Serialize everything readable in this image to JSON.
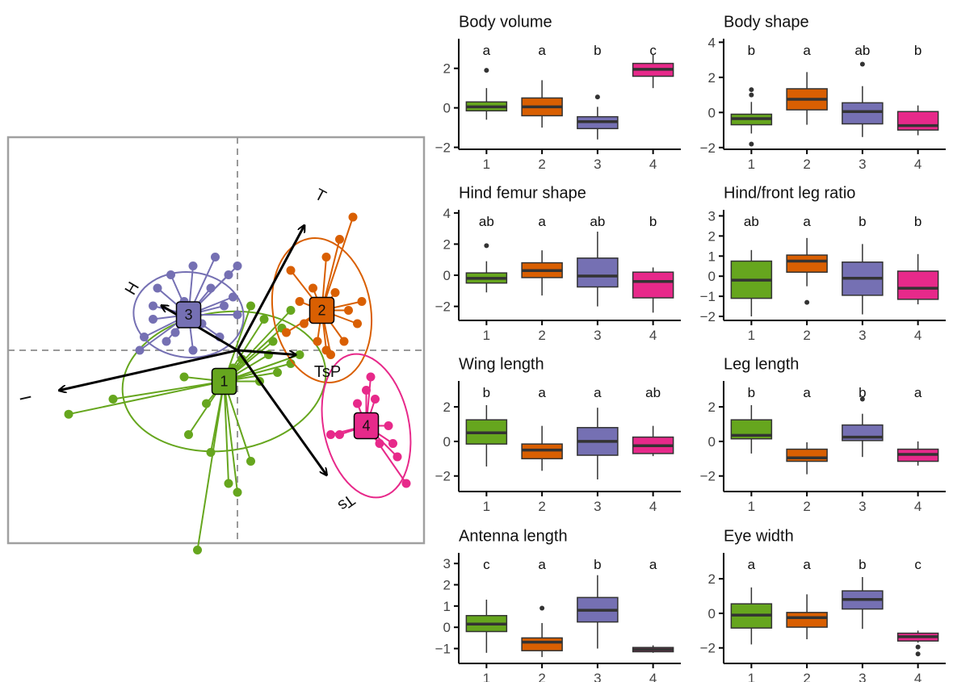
{
  "colors": {
    "g1": "#66a61e",
    "g2": "#d95f02",
    "g3": "#7570b3",
    "g4": "#e7298a",
    "ink": "#000000",
    "frame": "#a0a0a0",
    "dash": "#9a9a9a",
    "median": "#333333"
  },
  "chart_data": {
    "biplot": {
      "type": "scatter",
      "groups": [
        {
          "name": "1",
          "color": "#66a61e",
          "centroid": [
            -0.15,
            -0.35
          ],
          "ellipse": {
            "rx": 1.15,
            "ry": 0.78,
            "angle": -8
          },
          "points": [
            [
              -1.4,
              -0.55
            ],
            [
              -1.9,
              -0.72
            ],
            [
              -0.6,
              -0.3
            ],
            [
              -0.35,
              -0.6
            ],
            [
              -0.55,
              -0.95
            ],
            [
              -0.1,
              -1.5
            ],
            [
              -0.3,
              -1.15
            ],
            [
              0.15,
              -1.25
            ],
            [
              0.05,
              -0.1
            ],
            [
              0.35,
              -0.05
            ],
            [
              0.5,
              0.25
            ],
            [
              0.3,
              0.35
            ],
            [
              0.6,
              0.45
            ],
            [
              0.25,
              -0.35
            ],
            [
              0.45,
              -0.25
            ],
            [
              0.0,
              -1.6
            ],
            [
              -0.45,
              -2.25
            ],
            [
              0.6,
              -0.15
            ],
            [
              0.7,
              -0.05
            ],
            [
              0.15,
              0.5
            ],
            [
              -0.05,
              -0.2
            ],
            [
              0.4,
              0.1
            ]
          ]
        },
        {
          "name": "2",
          "color": "#d95f02",
          "centroid": [
            0.95,
            0.45
          ],
          "ellipse": {
            "rx": 0.55,
            "ry": 0.82,
            "angle": -10
          },
          "points": [
            [
              1.3,
              1.5
            ],
            [
              1.15,
              1.25
            ],
            [
              1.0,
              1.05
            ],
            [
              0.6,
              0.9
            ],
            [
              0.7,
              0.55
            ],
            [
              0.75,
              0.3
            ],
            [
              0.9,
              0.1
            ],
            [
              1.0,
              0.0
            ],
            [
              1.05,
              -0.05
            ],
            [
              1.2,
              0.1
            ],
            [
              1.35,
              0.3
            ],
            [
              0.85,
              0.7
            ],
            [
              1.1,
              0.65
            ],
            [
              0.55,
              0.2
            ],
            [
              1.4,
              0.55
            ],
            [
              1.25,
              0.45
            ]
          ]
        },
        {
          "name": "3",
          "color": "#7570b3",
          "centroid": [
            -0.55,
            0.4
          ],
          "ellipse": {
            "rx": 0.62,
            "ry": 0.48,
            "angle": 5
          },
          "points": [
            [
              -1.05,
              0.15
            ],
            [
              -1.1,
              0.0
            ],
            [
              -0.8,
              0.1
            ],
            [
              -0.95,
              0.5
            ],
            [
              -0.9,
              0.7
            ],
            [
              -0.75,
              0.85
            ],
            [
              -0.5,
              0.95
            ],
            [
              -0.3,
              0.7
            ],
            [
              0.0,
              0.95
            ],
            [
              -0.1,
              0.85
            ],
            [
              -0.05,
              0.6
            ],
            [
              0.0,
              0.4
            ],
            [
              -0.2,
              0.15
            ],
            [
              -0.5,
              0.0
            ],
            [
              -0.7,
              0.2
            ],
            [
              -0.95,
              0.35
            ],
            [
              -0.25,
              1.05
            ],
            [
              -0.6,
              0.55
            ],
            [
              -0.4,
              0.3
            ],
            [
              -0.15,
              0.5
            ]
          ]
        },
        {
          "name": "4",
          "color": "#e7298a",
          "centroid": [
            1.45,
            -0.85
          ],
          "ellipse": {
            "rx": 0.48,
            "ry": 0.82,
            "angle": -12
          },
          "points": [
            [
              1.5,
              -0.3
            ],
            [
              1.45,
              -0.45
            ],
            [
              1.35,
              -0.6
            ],
            [
              1.55,
              -0.55
            ],
            [
              1.7,
              -0.85
            ],
            [
              1.75,
              -1.05
            ],
            [
              1.6,
              -1.05
            ],
            [
              1.8,
              -1.2
            ],
            [
              1.9,
              -1.5
            ],
            [
              1.15,
              -0.95
            ],
            [
              1.05,
              -0.95
            ]
          ]
        }
      ],
      "arrows": [
        {
          "label": "T",
          "tip": [
            0.75,
            1.4
          ]
        },
        {
          "label": "H",
          "tip": [
            -0.85,
            0.5
          ]
        },
        {
          "label": "TsP",
          "tip": [
            0.65,
            -0.05
          ]
        },
        {
          "label": "I",
          "tip": [
            -2.0,
            -0.45
          ]
        },
        {
          "label": "Ts",
          "tip": [
            1.0,
            -1.4
          ]
        }
      ]
    },
    "boxplots": [
      {
        "type": "box",
        "title": "Body volume",
        "categories": [
          "1",
          "2",
          "3",
          "4"
        ],
        "yticks": [
          -2,
          0,
          2
        ],
        "ylim": [
          -2.1,
          3.5
        ],
        "letters": [
          "a",
          "a",
          "b",
          "c"
        ],
        "boxes": [
          {
            "q1": -0.15,
            "med": 0.05,
            "q3": 0.3,
            "lo": -0.6,
            "hi": 1.0,
            "out": [
              1.9
            ]
          },
          {
            "q1": -0.4,
            "med": 0.05,
            "q3": 0.5,
            "lo": -1.0,
            "hi": 1.4,
            "out": []
          },
          {
            "q1": -1.05,
            "med": -0.7,
            "q3": -0.45,
            "lo": -1.6,
            "hi": 0.05,
            "out": [
              0.55
            ]
          },
          {
            "q1": 1.6,
            "med": 1.95,
            "q3": 2.25,
            "lo": 1.0,
            "hi": 2.7,
            "out": []
          }
        ]
      },
      {
        "type": "box",
        "title": "Body shape",
        "categories": [
          "1",
          "2",
          "3",
          "4"
        ],
        "yticks": [
          -2,
          0,
          2,
          4
        ],
        "ylim": [
          -2.1,
          4.2
        ],
        "letters": [
          "b",
          "a",
          "ab",
          "b"
        ],
        "boxes": [
          {
            "q1": -0.7,
            "med": -0.35,
            "q3": -0.1,
            "lo": -1.2,
            "hi": 0.6,
            "out": [
              1.3,
              1.0,
              -1.8
            ]
          },
          {
            "q1": 0.15,
            "med": 0.75,
            "q3": 1.35,
            "lo": -0.7,
            "hi": 2.3,
            "out": []
          },
          {
            "q1": -0.65,
            "med": 0.05,
            "q3": 0.55,
            "lo": -1.4,
            "hi": 1.5,
            "out": [
              2.75
            ]
          },
          {
            "q1": -1.0,
            "med": -0.75,
            "q3": 0.05,
            "lo": -1.3,
            "hi": 0.4,
            "out": []
          }
        ]
      },
      {
        "type": "box",
        "title": "Hind femur shape",
        "categories": [
          "1",
          "2",
          "3",
          "4"
        ],
        "yticks": [
          -2,
          0,
          2,
          4
        ],
        "ylim": [
          -2.9,
          4.2
        ],
        "letters": [
          "ab",
          "a",
          "ab",
          "b"
        ],
        "boxes": [
          {
            "q1": -0.5,
            "med": -0.2,
            "q3": 0.15,
            "lo": -1.1,
            "hi": 0.9,
            "out": [
              1.9
            ]
          },
          {
            "q1": -0.15,
            "med": 0.3,
            "q3": 0.8,
            "lo": -1.3,
            "hi": 1.6,
            "out": []
          },
          {
            "q1": -0.75,
            "med": -0.05,
            "q3": 1.1,
            "lo": -2.0,
            "hi": 2.8,
            "out": []
          },
          {
            "q1": -1.45,
            "med": -0.4,
            "q3": 0.2,
            "lo": -2.4,
            "hi": 0.5,
            "out": []
          }
        ]
      },
      {
        "type": "box",
        "title": "Hind/front leg ratio",
        "categories": [
          "1",
          "2",
          "3",
          "4"
        ],
        "yticks": [
          -2,
          -1,
          0,
          1,
          2,
          3
        ],
        "ylim": [
          -2.2,
          3.3
        ],
        "letters": [
          "ab",
          "a",
          "b",
          "b"
        ],
        "boxes": [
          {
            "q1": -1.1,
            "med": -0.2,
            "q3": 0.75,
            "lo": -2.0,
            "hi": 1.3,
            "out": []
          },
          {
            "q1": 0.2,
            "med": 0.75,
            "q3": 1.05,
            "lo": -0.5,
            "hi": 1.9,
            "out": [
              -1.3
            ]
          },
          {
            "q1": -0.95,
            "med": -0.1,
            "q3": 0.7,
            "lo": -1.9,
            "hi": 1.6,
            "out": []
          },
          {
            "q1": -1.15,
            "med": -0.6,
            "q3": 0.25,
            "lo": -1.4,
            "hi": 1.1,
            "out": []
          }
        ]
      },
      {
        "type": "box",
        "title": "Wing length",
        "categories": [
          "1",
          "2",
          "3",
          "4"
        ],
        "yticks": [
          -2,
          0,
          2
        ],
        "ylim": [
          -2.9,
          3.5
        ],
        "letters": [
          "b",
          "a",
          "a",
          "ab"
        ],
        "boxes": [
          {
            "q1": -0.15,
            "med": 0.5,
            "q3": 1.25,
            "lo": -1.45,
            "hi": 2.1,
            "out": []
          },
          {
            "q1": -1.0,
            "med": -0.5,
            "q3": -0.15,
            "lo": -1.7,
            "hi": 0.9,
            "out": []
          },
          {
            "q1": -0.8,
            "med": 0.0,
            "q3": 0.8,
            "lo": -2.2,
            "hi": 1.95,
            "out": []
          },
          {
            "q1": -0.7,
            "med": -0.25,
            "q3": 0.25,
            "lo": -0.85,
            "hi": 0.9,
            "out": []
          }
        ]
      },
      {
        "type": "box",
        "title": "Leg length",
        "categories": [
          "1",
          "2",
          "3",
          "4"
        ],
        "yticks": [
          -2,
          0,
          2
        ],
        "ylim": [
          -2.9,
          3.5
        ],
        "letters": [
          "b",
          "a",
          "b",
          "a"
        ],
        "boxes": [
          {
            "q1": 0.15,
            "med": 0.35,
            "q3": 1.25,
            "lo": -0.7,
            "hi": 2.1,
            "out": []
          },
          {
            "q1": -1.15,
            "med": -0.95,
            "q3": -0.45,
            "lo": -1.9,
            "hi": -0.05,
            "out": []
          },
          {
            "q1": 0.05,
            "med": 0.25,
            "q3": 0.95,
            "lo": -0.9,
            "hi": 1.6,
            "out": [
              2.45
            ]
          },
          {
            "q1": -1.15,
            "med": -0.75,
            "q3": -0.45,
            "lo": -1.4,
            "hi": 0.0,
            "out": []
          }
        ]
      },
      {
        "type": "box",
        "title": "Antenna length",
        "categories": [
          "1",
          "2",
          "3",
          "4"
        ],
        "yticks": [
          -1,
          0,
          1,
          2,
          3
        ],
        "ylim": [
          -1.7,
          3.5
        ],
        "letters": [
          "c",
          "a",
          "b",
          "a"
        ],
        "boxes": [
          {
            "q1": -0.2,
            "med": 0.15,
            "q3": 0.55,
            "lo": -1.2,
            "hi": 1.3,
            "out": []
          },
          {
            "q1": -1.1,
            "med": -0.7,
            "q3": -0.5,
            "lo": -1.4,
            "hi": 0.2,
            "out": [
              0.9
            ]
          },
          {
            "q1": 0.25,
            "med": 0.8,
            "q3": 1.4,
            "lo": -1.0,
            "hi": 2.45,
            "out": []
          },
          {
            "q1": -1.15,
            "med": -1.05,
            "q3": -0.95,
            "lo": -1.2,
            "hi": -0.85,
            "out": []
          }
        ]
      },
      {
        "type": "box",
        "title": "Eye width",
        "categories": [
          "1",
          "2",
          "3",
          "4"
        ],
        "yticks": [
          -2,
          0,
          2
        ],
        "ylim": [
          -2.9,
          3.5
        ],
        "letters": [
          "a",
          "a",
          "b",
          "c"
        ],
        "boxes": [
          {
            "q1": -0.85,
            "med": -0.1,
            "q3": 0.55,
            "lo": -1.8,
            "hi": 1.5,
            "out": []
          },
          {
            "q1": -0.8,
            "med": -0.25,
            "q3": 0.05,
            "lo": -1.5,
            "hi": 1.1,
            "out": []
          },
          {
            "q1": 0.25,
            "med": 0.8,
            "q3": 1.3,
            "lo": -0.9,
            "hi": 2.1,
            "out": []
          },
          {
            "q1": -1.6,
            "med": -1.35,
            "q3": -1.15,
            "lo": -1.7,
            "hi": -1.0,
            "out": [
              -1.95,
              -2.35
            ]
          }
        ]
      }
    ]
  }
}
